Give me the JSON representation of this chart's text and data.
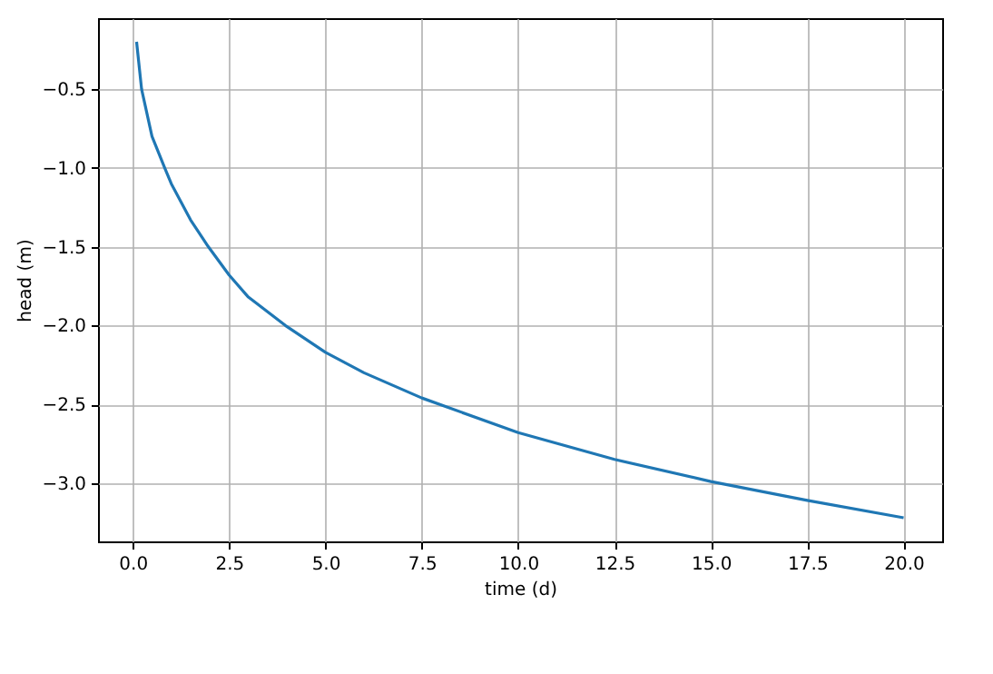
{
  "chart_data": {
    "type": "line",
    "xlabel": "time (d)",
    "ylabel": "head (m)",
    "x": [
      0.1,
      0.23,
      0.5,
      0.83,
      1,
      1.5,
      1.96,
      2.5,
      3,
      3.96,
      5,
      6,
      7.5,
      10,
      12.5,
      15,
      17.5,
      20
    ],
    "series": [
      {
        "color": "#1f77b4",
        "values": [
          -0.2,
          -0.5,
          -0.8,
          -1.0,
          -1.1,
          -1.33,
          -1.5,
          -1.68,
          -1.82,
          -2.0,
          -2.17,
          -2.3,
          -2.46,
          -2.68,
          -2.85,
          -2.99,
          -3.11,
          -3.22
        ]
      }
    ],
    "xlim": [
      -0.9,
      21
    ],
    "ylim": [
      -3.37,
      -0.05
    ],
    "xticks": [
      {
        "value": 0,
        "label": "0.0"
      },
      2.5,
      {
        "value": 5,
        "label": "5.0"
      },
      7.5,
      {
        "value": 10,
        "label": "10.0"
      },
      12.5,
      {
        "value": 15,
        "label": "15.0"
      },
      17.5,
      {
        "value": 20,
        "label": "20.0"
      }
    ],
    "yticks": [
      {
        "value": -3,
        "label": "−3.0"
      },
      -2.5,
      {
        "value": -2,
        "label": "−2.0"
      },
      -1.5,
      {
        "value": -1,
        "label": "−1.0"
      },
      -0.5
    ],
    "grid": true,
    "legend": false,
    "marker": "none",
    "line_style": "solid"
  }
}
